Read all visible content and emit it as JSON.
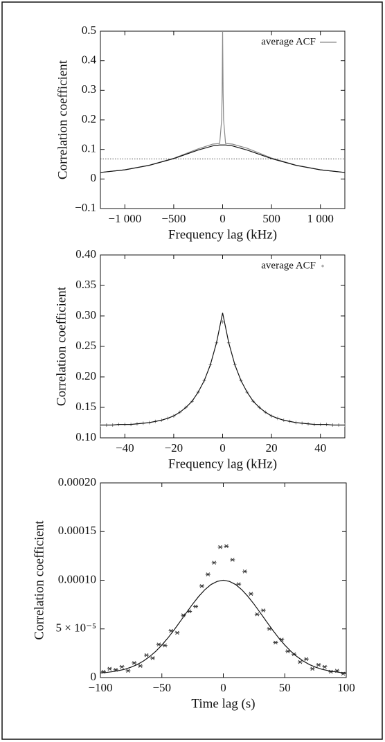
{
  "chart_data": [
    {
      "type": "line",
      "x_label": "Frequency lag (kHz)",
      "y_label": "Correlation coefficient",
      "xlim": [
        -1250,
        1250
      ],
      "ylim": [
        -0.1,
        0.5
      ],
      "xticks": [
        {
          "value": -1000,
          "label": "−1 000"
        },
        {
          "value": -500,
          "label": "−500"
        },
        0,
        500,
        {
          "value": 1000,
          "label": "1 000"
        }
      ],
      "yticks": [
        {
          "value": -0.1,
          "label": "−0.1"
        },
        0,
        0.1,
        0.2,
        0.3,
        0.4,
        0.5
      ],
      "legend": "upper right",
      "hline": 0.068,
      "x": [
        -1250,
        -1000,
        -750,
        -500,
        -250,
        -100,
        -30,
        -10,
        -5,
        0,
        5,
        10,
        30,
        100,
        250,
        500,
        750,
        1000,
        1250
      ],
      "series": [
        {
          "name": "average ACF",
          "color": "#888888",
          "kind": "line",
          "values": [
            0.022,
            0.031,
            0.047,
            0.07,
            0.102,
            0.118,
            0.12,
            0.2,
            0.29,
            0.5,
            0.29,
            0.2,
            0.12,
            0.118,
            0.104,
            0.071,
            0.047,
            0.031,
            0.022
          ]
        },
        {
          "color": "#111111",
          "kind": "line",
          "values": [
            0.022,
            0.031,
            0.046,
            0.069,
            0.098,
            0.112,
            0.115,
            0.115,
            0.115,
            0.115,
            0.115,
            0.115,
            0.115,
            0.112,
            0.098,
            0.069,
            0.046,
            0.031,
            0.022
          ]
        }
      ]
    },
    {
      "type": "line",
      "x_label": "Frequency lag (kHz)",
      "y_label": "Correlation coefficient",
      "xlim": [
        -50,
        50
      ],
      "ylim": [
        0.1,
        0.4
      ],
      "xticks": [
        {
          "value": -40,
          "label": "−40"
        },
        {
          "value": -20,
          "label": "−20"
        },
        0,
        20,
        40
      ],
      "yticks": [
        {
          "value": 0.1,
          "label": "0.10"
        },
        0.15,
        {
          "value": 0.2,
          "label": "0.20"
        },
        0.25,
        {
          "value": 0.3,
          "label": "0.30"
        },
        0.35,
        {
          "value": 0.4,
          "label": "0.40"
        }
      ],
      "legend": "upper right",
      "x": [
        -50,
        -47.5,
        -45,
        -42.5,
        -40,
        -37.5,
        -35,
        -32.5,
        -30,
        -27.5,
        -25,
        -22.5,
        -20,
        -17.5,
        -15,
        -12.5,
        -10,
        -7.5,
        -5,
        -2.5,
        0,
        2.5,
        5,
        7.5,
        10,
        12.5,
        15,
        17.5,
        20,
        22.5,
        25,
        27.5,
        30,
        32.5,
        35,
        37.5,
        40,
        42.5,
        45,
        47.5,
        50
      ],
      "series": [
        {
          "name": "average ACF",
          "color": "#888888",
          "kind": "plus",
          "values": [
            0.121,
            0.121,
            0.121,
            0.122,
            0.122,
            0.122,
            0.123,
            0.124,
            0.125,
            0.127,
            0.129,
            0.132,
            0.136,
            0.142,
            0.15,
            0.16,
            0.175,
            0.194,
            0.22,
            0.256,
            0.29,
            0.256,
            0.22,
            0.194,
            0.175,
            0.16,
            0.15,
            0.142,
            0.136,
            0.132,
            0.129,
            0.127,
            0.125,
            0.124,
            0.123,
            0.122,
            0.122,
            0.122,
            0.121,
            0.121,
            0.121
          ]
        },
        {
          "color": "#111111",
          "kind": "line",
          "values": [
            0.121,
            0.121,
            0.121,
            0.122,
            0.122,
            0.122,
            0.123,
            0.124,
            0.125,
            0.127,
            0.129,
            0.132,
            0.136,
            0.142,
            0.15,
            0.16,
            0.175,
            0.194,
            0.22,
            0.256,
            0.305,
            0.256,
            0.22,
            0.194,
            0.175,
            0.16,
            0.15,
            0.142,
            0.136,
            0.132,
            0.129,
            0.127,
            0.125,
            0.124,
            0.123,
            0.122,
            0.122,
            0.122,
            0.121,
            0.121,
            0.121
          ]
        }
      ]
    },
    {
      "type": "scatter",
      "x_label": "Time lag (s)",
      "y_label": "Correlation coefficient",
      "xlim": [
        -100,
        100
      ],
      "ylim": [
        0,
        0.0002
      ],
      "xticks": [
        {
          "value": -100,
          "label": "−100"
        },
        {
          "value": -50,
          "label": "−50"
        },
        0,
        50,
        100
      ],
      "yticks": [
        0,
        {
          "value": 5e-05,
          "label": "5 × 10⁻⁵"
        },
        {
          "value": 0.0001,
          "label": "0.00010"
        },
        {
          "value": 0.00015,
          "label": "0.00015"
        },
        {
          "value": 0.0002,
          "label": "0.00020"
        }
      ],
      "series": [
        {
          "color": "#333333",
          "kind": "star",
          "x": [
            -97.5,
            -92.5,
            -87.5,
            -82.5,
            -77.5,
            -72.5,
            -67.5,
            -62.5,
            -57.5,
            -52.5,
            -47.5,
            -42.5,
            -37.5,
            -32.5,
            -27.5,
            -22.5,
            -17.5,
            -12.5,
            -7.5,
            -2.5,
            2.5,
            7.5,
            12.5,
            17.5,
            22.5,
            27.5,
            32.5,
            37.5,
            42.5,
            47.5,
            52.5,
            57.5,
            62.5,
            67.5,
            72.5,
            77.5,
            82.5,
            87.5,
            92.5,
            97.5
          ],
          "values": [
            6e-06,
            9e-06,
            8e-06,
            1.1e-05,
            7e-06,
            1.5e-05,
            1.2e-05,
            2.3e-05,
            2e-05,
            3.4e-05,
            3.3e-05,
            4.8e-05,
            4.6e-05,
            6.4e-05,
            6.8e-05,
            7.3e-05,
            9.4e-05,
            0.000106,
            0.000118,
            0.000134,
            0.000135,
            0.000121,
            9.6e-05,
            0.000109,
            8.6e-05,
            6.5e-05,
            6.9e-05,
            5e-05,
            3.6e-05,
            3.9e-05,
            2.7e-05,
            2.4e-05,
            1.6e-05,
            1.9e-05,
            9e-06,
            1.3e-05,
            1.1e-05,
            6e-06,
            7e-06,
            4e-06
          ]
        },
        {
          "color": "#111111",
          "kind": "line",
          "x": [
            -100,
            -95,
            -90,
            -85,
            -80,
            -75,
            -70,
            -65,
            -60,
            -55,
            -50,
            -45,
            -40,
            -35,
            -30,
            -25,
            -20,
            -15,
            -10,
            -5,
            0,
            5,
            10,
            15,
            20,
            25,
            30,
            35,
            40,
            45,
            50,
            55,
            60,
            65,
            70,
            75,
            80,
            85,
            90,
            95,
            100
          ],
          "values": [
            4.8e-06,
            5.3e-06,
            6.1e-06,
            7.2e-06,
            8.6e-06,
            1.07e-05,
            1.34e-05,
            1.7e-05,
            2.15e-05,
            2.69e-05,
            3.34e-05,
            4.08e-05,
            4.9e-05,
            5.78e-05,
            6.67e-05,
            7.54e-05,
            8.34e-05,
            9.03e-05,
            9.56e-05,
            9.88e-05,
            0.0001,
            9.88e-05,
            9.56e-05,
            9.03e-05,
            8.34e-05,
            7.54e-05,
            6.67e-05,
            5.78e-05,
            4.9e-05,
            4.08e-05,
            3.34e-05,
            2.69e-05,
            2.15e-05,
            1.7e-05,
            1.34e-05,
            1.07e-05,
            8.6e-06,
            7.2e-06,
            6.1e-06,
            5.3e-06,
            4.8e-06
          ]
        }
      ]
    }
  ]
}
